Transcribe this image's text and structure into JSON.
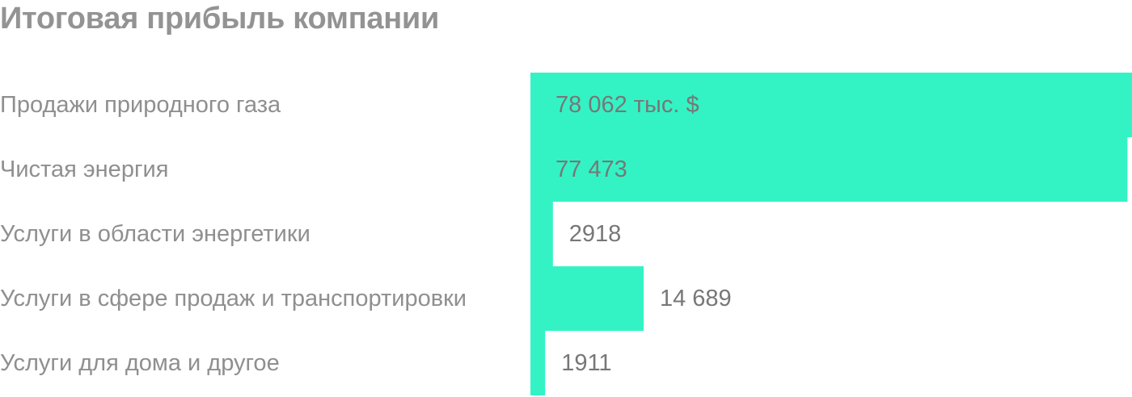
{
  "chart_data": {
    "type": "bar",
    "orientation": "horizontal",
    "title": "Итоговая прибыль компании",
    "categories": [
      "Продажи природного газа",
      "Чистая энергия",
      "Услуги в области энергетики",
      "Услуги в сфере продаж и транспортировки",
      "Услуги для дома и другое"
    ],
    "values": [
      78062,
      77473,
      2918,
      14689,
      1911
    ],
    "value_labels": [
      "78 062 тыс. $",
      "77 473",
      "2918",
      "14 689",
      "1911"
    ],
    "unit": "тыс. $",
    "bar_color": "#33f3c4",
    "label_color": "#8f8f8f",
    "value_color": "#777777",
    "title_color": "#939393",
    "grid": false,
    "legend": "none"
  }
}
